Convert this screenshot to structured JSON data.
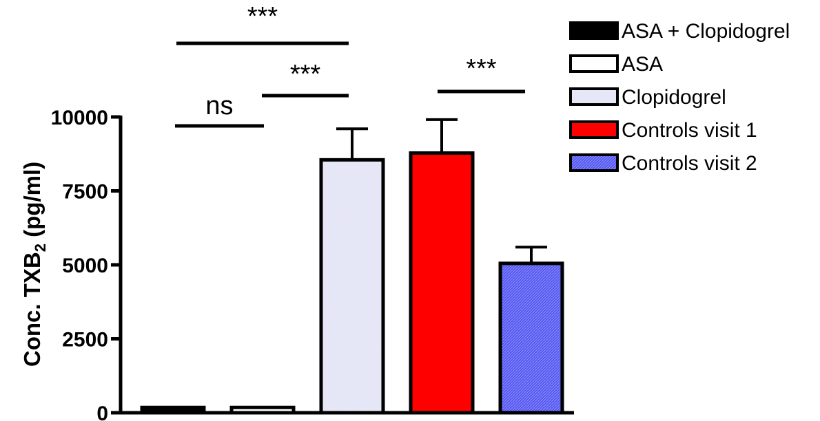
{
  "chart_data": {
    "type": "bar",
    "title": "",
    "ylabel_prefix": "Conc. TXB",
    "ylabel_sub": "2",
    "ylabel_suffix": " (pg/ml)",
    "ylim": [
      0,
      10000
    ],
    "yticks": [
      0,
      2500,
      5000,
      7500,
      10000
    ],
    "ytick_labels": [
      "0",
      "2500",
      "5000",
      "7500",
      "10000"
    ],
    "legend_position": "top-right",
    "series": [
      {
        "name": "ASA + Clopidogrel",
        "value": 180,
        "error": 0,
        "color": "#000000",
        "hatch": false
      },
      {
        "name": "ASA",
        "value": 180,
        "error": 0,
        "color": "#ffffff",
        "hatch": false
      },
      {
        "name": "Clopidogrel",
        "value": 8550,
        "error": 1050,
        "color": "#e2e4f6",
        "hatch": true
      },
      {
        "name": "Controls visit 1",
        "value": 8780,
        "error": 1130,
        "color": "#ff0000",
        "hatch": false
      },
      {
        "name": "Controls visit 2",
        "value": 5050,
        "error": 550,
        "color": "#5457f2",
        "hatch": true
      }
    ],
    "annotations": [
      {
        "text": "***",
        "from": 0,
        "to": 2,
        "level": 10000
      },
      {
        "text": "***",
        "from": 1,
        "to": 2,
        "level": 10000
      },
      {
        "text": "ns",
        "from": 0,
        "to": 1,
        "level": 10000
      },
      {
        "text": "***",
        "from": 3,
        "to": 4,
        "level": 10000
      }
    ]
  }
}
